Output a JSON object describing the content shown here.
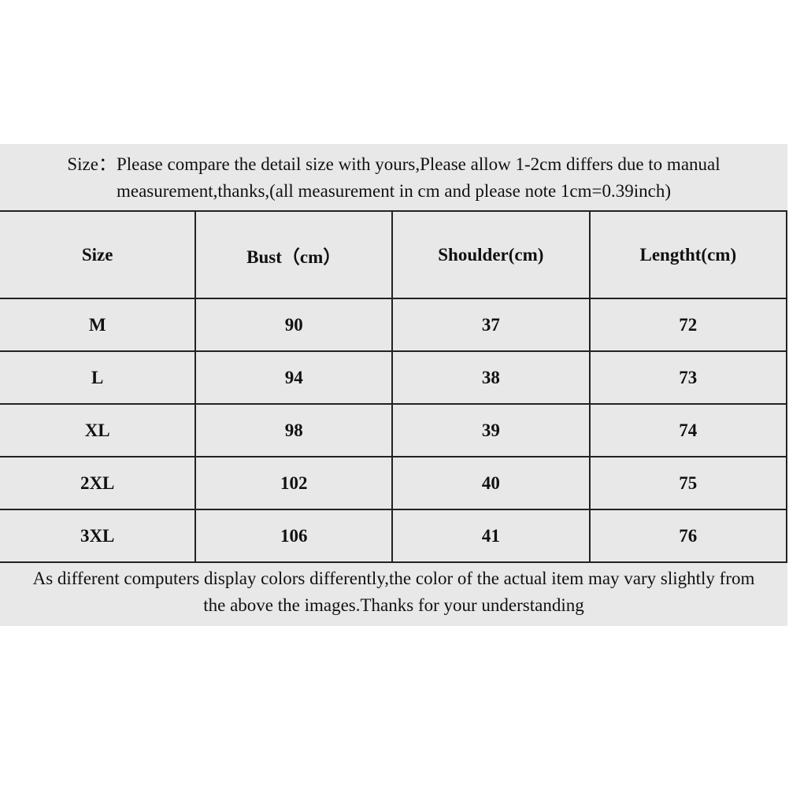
{
  "notes": {
    "top_line1": "Size：Please compare the detail size with yours,Please allow 1-2cm differs due to manual",
    "top_line2": "measurement,thanks,(all measurement in cm and please note 1cm=0.39inch)",
    "bottom_line1": "As different computers display colors differently,the color of the actual item may vary slightly from",
    "bottom_line2": "the above the images.Thanks for your understanding"
  },
  "table": {
    "headers": [
      "Size",
      "Bust（cm）",
      "Shoulder(cm)",
      "Lengtht(cm)"
    ],
    "rows": [
      [
        "M",
        "90",
        "37",
        "72"
      ],
      [
        "L",
        "94",
        "38",
        "73"
      ],
      [
        "XL",
        "98",
        "39",
        "74"
      ],
      [
        "2XL",
        "102",
        "40",
        "75"
      ],
      [
        "3XL",
        "106",
        "41",
        "76"
      ]
    ]
  },
  "colors": {
    "background": "#e8e8e8",
    "border": "#222222"
  }
}
